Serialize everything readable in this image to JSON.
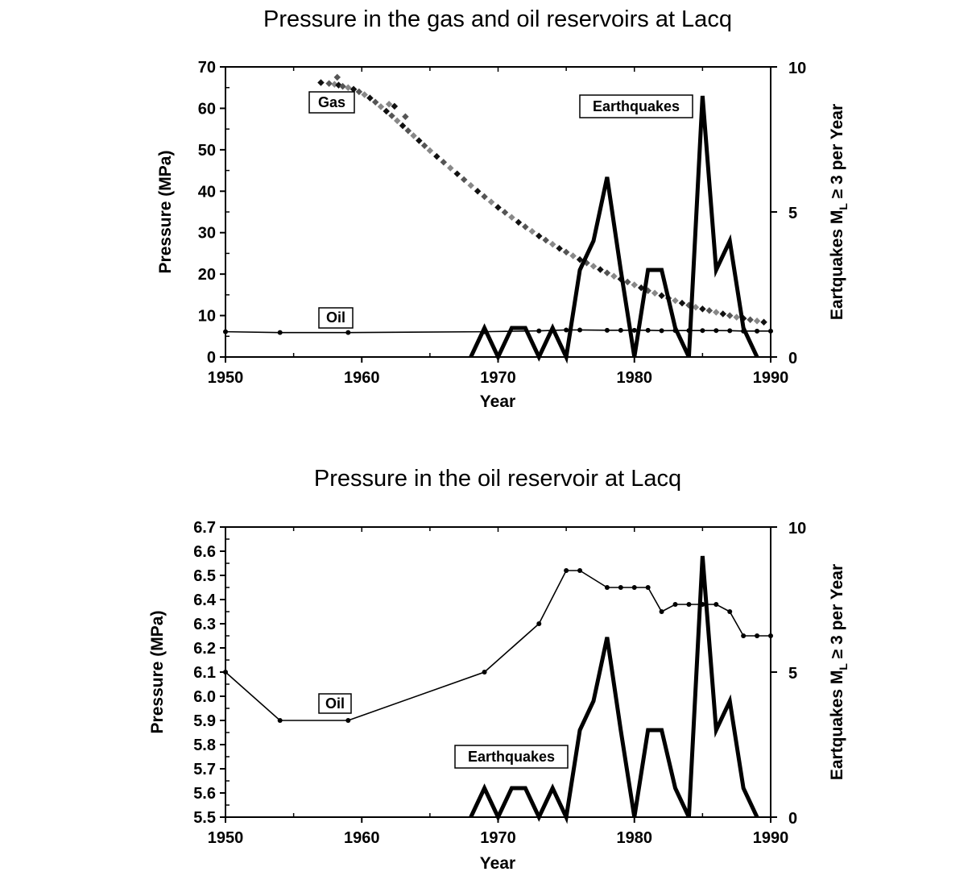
{
  "chart_data": [
    {
      "type": "line",
      "title": "Pressure in the gas and oil reservoirs at Lacq",
      "xlabel": "Year",
      "ylabel": "Pressure (MPa)",
      "y2label": "Eartquakes M",
      "y2label_sub": "L",
      "y2label_rest": " ≥ 3 per Year",
      "xlim": [
        1950,
        1990
      ],
      "ylim": [
        0,
        70
      ],
      "y2lim": [
        0,
        10
      ],
      "xticks": [
        "1950",
        "1960",
        "1970",
        "1980",
        "1990"
      ],
      "yticks": [
        "0",
        "10",
        "20",
        "30",
        "40",
        "50",
        "60",
        "70"
      ],
      "y2ticks": [
        "0",
        "5",
        "10"
      ],
      "annotations": {
        "gas": "Gas",
        "oil": "Oil",
        "earthquakes": "Earthquakes"
      },
      "series": [
        {
          "name": "Gas",
          "axis": "left",
          "style": "scatter",
          "x": [
            1957.0,
            1957.6,
            1958.0,
            1958.3,
            1958.6,
            1959.0,
            1959.4,
            1959.8,
            1960.2,
            1960.6,
            1961.0,
            1961.4,
            1961.8,
            1962.2,
            1962.6,
            1963.0,
            1963.4,
            1963.8,
            1964.2,
            1964.6,
            1965.0,
            1965.5,
            1966.0,
            1966.5,
            1967.0,
            1967.5,
            1968.0,
            1968.5,
            1969.0,
            1969.5,
            1970.0,
            1970.5,
            1971.0,
            1971.5,
            1972.0,
            1972.5,
            1973.0,
            1973.5,
            1974.0,
            1974.5,
            1975.0,
            1975.5,
            1976.0,
            1976.5,
            1977.0,
            1977.5,
            1978.0,
            1978.5,
            1979.0,
            1979.5,
            1980.0,
            1980.5,
            1981.0,
            1981.5,
            1982.0,
            1982.5,
            1983.0,
            1983.5,
            1984.0,
            1984.5,
            1985.0,
            1985.5,
            1986.0,
            1986.5,
            1987.0,
            1987.5,
            1988.0,
            1988.5,
            1989.0,
            1989.5,
            1958.2,
            1962.0,
            1962.4,
            1963.2
          ],
          "values": [
            66.2,
            66.0,
            65.8,
            65.6,
            65.3,
            65.0,
            64.6,
            64.0,
            63.3,
            62.5,
            61.5,
            60.4,
            59.3,
            58.2,
            57.0,
            55.8,
            54.6,
            53.4,
            52.2,
            51.0,
            49.8,
            48.4,
            47.0,
            45.6,
            44.2,
            42.8,
            41.4,
            40.0,
            38.7,
            37.4,
            36.1,
            34.9,
            33.7,
            32.5,
            31.4,
            30.3,
            29.2,
            28.2,
            27.2,
            26.2,
            25.3,
            24.4,
            23.5,
            22.7,
            21.9,
            21.1,
            20.3,
            19.5,
            18.8,
            18.1,
            17.4,
            16.7,
            16.0,
            15.4,
            14.8,
            14.2,
            13.6,
            13.0,
            12.5,
            12.0,
            11.6,
            11.2,
            10.8,
            10.4,
            10.0,
            9.6,
            9.3,
            9.0,
            8.7,
            8.4,
            67.5,
            61.0,
            60.5,
            58.0
          ]
        },
        {
          "name": "Oil",
          "axis": "left",
          "style": "line-markers",
          "x": [
            1950,
            1954,
            1959,
            1969,
            1973,
            1975,
            1976,
            1978,
            1979,
            1980,
            1981,
            1982,
            1983,
            1984,
            1985,
            1986,
            1987,
            1988,
            1989,
            1990
          ],
          "values": [
            6.1,
            5.9,
            5.9,
            6.1,
            6.3,
            6.52,
            6.52,
            6.45,
            6.45,
            6.45,
            6.45,
            6.35,
            6.38,
            6.38,
            6.38,
            6.38,
            6.35,
            6.25,
            6.25,
            6.25
          ]
        },
        {
          "name": "Earthquakes",
          "axis": "right",
          "style": "thick-line",
          "x": [
            1968,
            1969,
            1970,
            1971,
            1972,
            1973,
            1974,
            1975,
            1976,
            1977,
            1978,
            1979,
            1980,
            1981,
            1982,
            1983,
            1984,
            1985,
            1986,
            1987,
            1988,
            1989
          ],
          "values": [
            0,
            1,
            0,
            1,
            1,
            0,
            1,
            0,
            3,
            4,
            6.2,
            3,
            0,
            3,
            3,
            1,
            0,
            9,
            3,
            4,
            1,
            0
          ]
        }
      ]
    },
    {
      "type": "line",
      "title": "Pressure in the oil reservoir at Lacq",
      "xlabel": "Year",
      "ylabel": "Pressure (MPa)",
      "y2label": "Eartquakes M",
      "y2label_sub": "L",
      "y2label_rest": " ≥ 3 per Year",
      "xlim": [
        1950,
        1990
      ],
      "ylim": [
        5.5,
        6.7
      ],
      "y2lim": [
        0,
        10
      ],
      "xticks": [
        "1950",
        "1960",
        "1970",
        "1980",
        "1990"
      ],
      "yticks": [
        "5.5",
        "5.6",
        "5.7",
        "5.8",
        "5.9",
        "6.0",
        "6.1",
        "6.2",
        "6.3",
        "6.4",
        "6.5",
        "6.6",
        "6.7"
      ],
      "y2ticks": [
        "0",
        "5",
        "10"
      ],
      "annotations": {
        "oil": "Oil",
        "earthquakes": "Earthquakes"
      },
      "series": [
        {
          "name": "Oil",
          "axis": "left",
          "style": "line-markers",
          "x": [
            1950,
            1954,
            1959,
            1969,
            1973,
            1975,
            1976,
            1978,
            1979,
            1980,
            1981,
            1982,
            1983,
            1984,
            1985,
            1986,
            1987,
            1988,
            1989,
            1990
          ],
          "values": [
            6.1,
            5.9,
            5.9,
            6.1,
            6.3,
            6.52,
            6.52,
            6.45,
            6.45,
            6.45,
            6.45,
            6.35,
            6.38,
            6.38,
            6.38,
            6.38,
            6.35,
            6.25,
            6.25,
            6.25
          ]
        },
        {
          "name": "Earthquakes",
          "axis": "right",
          "style": "thick-line",
          "x": [
            1968,
            1969,
            1970,
            1971,
            1972,
            1973,
            1974,
            1975,
            1976,
            1977,
            1978,
            1979,
            1980,
            1981,
            1982,
            1983,
            1984,
            1985,
            1986,
            1987,
            1988,
            1989
          ],
          "values": [
            0,
            1,
            0,
            1,
            1,
            0,
            1,
            0,
            3,
            4,
            6.2,
            3,
            0,
            3,
            3,
            1,
            0,
            9,
            3,
            4,
            1,
            0
          ]
        }
      ]
    }
  ]
}
